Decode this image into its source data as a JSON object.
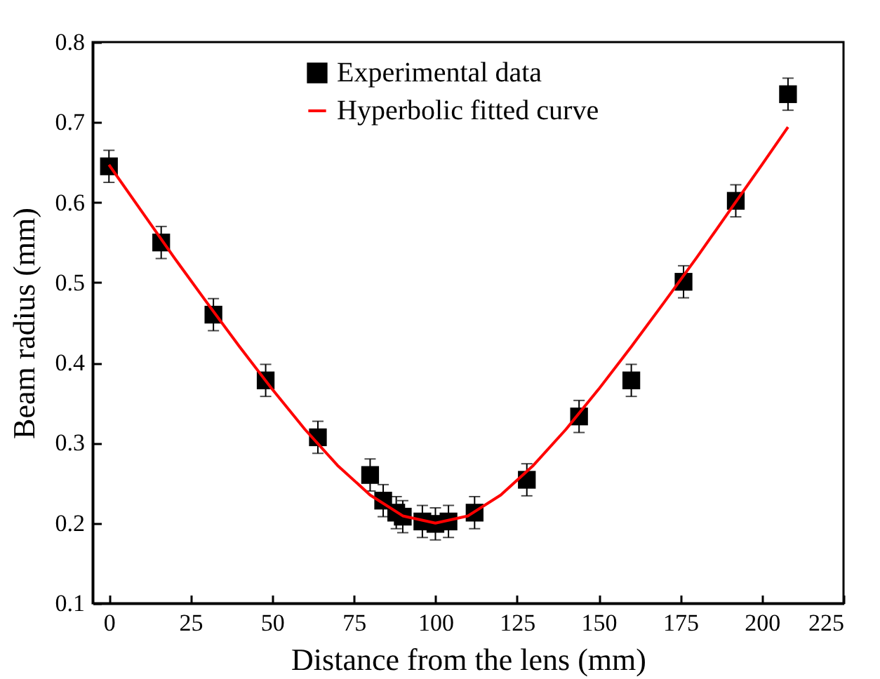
{
  "chart_data": {
    "type": "scatter",
    "xlabel": "Distance from the lens (mm)",
    "ylabel": "Beam radius (mm)",
    "xlim": [
      -5,
      225
    ],
    "xticks": [
      0,
      25,
      50,
      75,
      100,
      125,
      150,
      175,
      200,
      225
    ],
    "ylim": [
      0.1,
      0.8
    ],
    "yticks": [
      0.1,
      0.2,
      0.3,
      0.4,
      0.5,
      0.6,
      0.7,
      0.8
    ],
    "legend": "top",
    "series": [
      {
        "name": "Experimental data",
        "marker": "square",
        "color": "#000000",
        "x": [
          0,
          16,
          32,
          48,
          64,
          80,
          84,
          88,
          90,
          96,
          100,
          104,
          112,
          128,
          144,
          160,
          176,
          192,
          208
        ],
        "values": [
          0.645,
          0.55,
          0.46,
          0.378,
          0.307,
          0.26,
          0.228,
          0.213,
          0.208,
          0.202,
          0.199,
          0.202,
          0.213,
          0.254,
          0.333,
          0.378,
          0.501,
          0.602,
          0.735
        ],
        "errors": [
          0.02,
          0.02,
          0.02,
          0.02,
          0.02,
          0.02,
          0.02,
          0.02,
          0.02,
          0.02,
          0.02,
          0.02,
          0.02,
          0.02,
          0.02,
          0.02,
          0.02,
          0.02,
          0.02
        ]
      },
      {
        "name": "Hyperbolic fitted curve",
        "type": "line",
        "color": "#ff0000",
        "line_style": "solid",
        "x": [
          0,
          10,
          20,
          30,
          40,
          50,
          60,
          70,
          80,
          90,
          100,
          110,
          120,
          130,
          140,
          150,
          160,
          170,
          180,
          190,
          200,
          208
        ],
        "values": [
          0.647,
          0.589,
          0.531,
          0.475,
          0.42,
          0.367,
          0.317,
          0.272,
          0.235,
          0.209,
          0.2,
          0.209,
          0.235,
          0.272,
          0.317,
          0.367,
          0.42,
          0.475,
          0.531,
          0.589,
          0.647,
          0.694
        ]
      }
    ]
  }
}
